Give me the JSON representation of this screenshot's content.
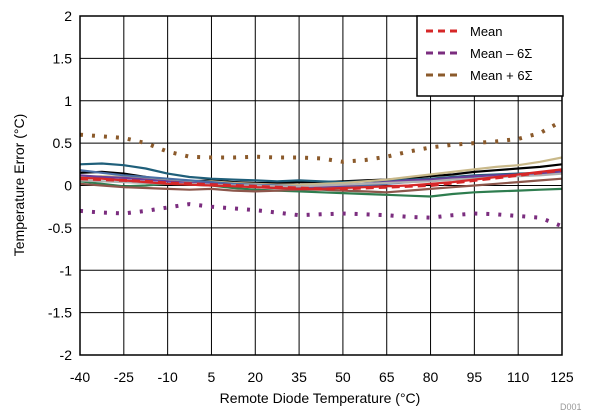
{
  "chart_data": {
    "type": "line",
    "title": "",
    "xlabel": "Remote Diode Temperature (°C)",
    "ylabel": "Temperature Error (°C)",
    "x": [
      -40,
      -32.5,
      -25,
      -17.5,
      -10,
      -2.5,
      5,
      12.5,
      20,
      27.5,
      35,
      42.5,
      50,
      57.5,
      65,
      72.5,
      80,
      87.5,
      95,
      102.5,
      110,
      117.5,
      125
    ],
    "xticks": [
      "-40",
      "-25",
      "-10",
      "5",
      "20",
      "35",
      "50",
      "65",
      "80",
      "95",
      "110",
      "125"
    ],
    "xlim": [
      -40,
      125
    ],
    "yticks": [
      "-2",
      "-1.5",
      "-1",
      "-0.5",
      "0",
      "0.5",
      "1",
      "1.5",
      "2"
    ],
    "ylim": [
      -2,
      2
    ],
    "grid": true,
    "legend_position": "top-right",
    "watermark": "D001",
    "series": [
      {
        "name": "Mean",
        "color": "#d62728",
        "style": "dashed",
        "values": [
          0.08,
          0.07,
          0.06,
          0.05,
          0.03,
          0.02,
          0.01,
          0.0,
          -0.01,
          -0.02,
          -0.03,
          -0.04,
          -0.04,
          -0.03,
          -0.02,
          -0.01,
          0.0,
          0.03,
          0.06,
          0.09,
          0.12,
          0.15,
          0.18
        ]
      },
      {
        "name": "Mean – 6Σ",
        "color": "#7b2d7f",
        "style": "dotted",
        "values": [
          -0.3,
          -0.32,
          -0.33,
          -0.3,
          -0.26,
          -0.22,
          -0.25,
          -0.27,
          -0.29,
          -0.32,
          -0.35,
          -0.34,
          -0.33,
          -0.34,
          -0.35,
          -0.37,
          -0.38,
          -0.35,
          -0.33,
          -0.34,
          -0.36,
          -0.38,
          -0.48
        ]
      },
      {
        "name": "Mean + 6Σ",
        "color": "#8b5a2b",
        "style": "dotted",
        "values": [
          0.6,
          0.58,
          0.56,
          0.5,
          0.4,
          0.34,
          0.33,
          0.33,
          0.34,
          0.33,
          0.33,
          0.32,
          0.28,
          0.3,
          0.34,
          0.4,
          0.45,
          0.48,
          0.5,
          0.52,
          0.55,
          0.62,
          0.76
        ]
      },
      {
        "name": "",
        "color": "#000000",
        "style": "solid",
        "values": [
          0.15,
          0.16,
          0.14,
          0.1,
          0.06,
          0.05,
          0.06,
          0.04,
          0.03,
          0.03,
          0.04,
          0.04,
          0.05,
          0.06,
          0.07,
          0.09,
          0.11,
          0.13,
          0.16,
          0.18,
          0.2,
          0.22,
          0.25
        ]
      },
      {
        "name": "",
        "color": "#1f5f7a",
        "style": "solid",
        "values": [
          0.25,
          0.26,
          0.24,
          0.2,
          0.14,
          0.1,
          0.08,
          0.07,
          0.06,
          0.05,
          0.06,
          0.05,
          0.04,
          0.05,
          0.06,
          0.07,
          0.08,
          0.1,
          0.12,
          0.13,
          0.14,
          0.15,
          0.17
        ]
      },
      {
        "name": "",
        "color": "#2e7d4f",
        "style": "solid",
        "values": [
          0.05,
          0.02,
          -0.01,
          0.0,
          0.02,
          0.01,
          0.0,
          -0.03,
          -0.05,
          -0.06,
          -0.07,
          -0.08,
          -0.09,
          -0.1,
          -0.11,
          -0.12,
          -0.13,
          -0.1,
          -0.08,
          -0.07,
          -0.06,
          -0.05,
          -0.04
        ]
      },
      {
        "name": "",
        "color": "#c9b98a",
        "style": "solid",
        "values": [
          0.1,
          0.11,
          0.1,
          0.08,
          0.06,
          0.04,
          0.05,
          0.03,
          0.02,
          0.01,
          0.01,
          0.02,
          0.03,
          0.05,
          0.07,
          0.1,
          0.13,
          0.16,
          0.19,
          0.22,
          0.24,
          0.28,
          0.33
        ]
      },
      {
        "name": "",
        "color": "#4a6fa5",
        "style": "solid",
        "values": [
          0.18,
          0.15,
          0.12,
          0.1,
          0.08,
          0.06,
          0.04,
          0.02,
          0.01,
          0.0,
          -0.01,
          -0.02,
          -0.01,
          0.0,
          0.02,
          0.04,
          0.06,
          0.08,
          0.1,
          0.11,
          0.12,
          0.13,
          0.15
        ]
      },
      {
        "name": "",
        "color": "#8c564b",
        "style": "solid",
        "values": [
          0.02,
          0.0,
          -0.02,
          -0.03,
          -0.04,
          -0.05,
          -0.04,
          -0.06,
          -0.07,
          -0.06,
          -0.05,
          -0.05,
          -0.06,
          -0.07,
          -0.08,
          -0.06,
          -0.04,
          -0.02,
          0.0,
          0.02,
          0.04,
          0.06,
          0.08
        ]
      },
      {
        "name": "",
        "color": "#6a3d9a",
        "style": "solid",
        "values": [
          0.12,
          0.1,
          0.09,
          0.07,
          0.05,
          0.03,
          0.02,
          0.0,
          -0.02,
          -0.03,
          -0.02,
          -0.01,
          0.0,
          0.02,
          0.04,
          0.06,
          0.07,
          0.09,
          0.11,
          0.12,
          0.13,
          0.14,
          0.16
        ]
      },
      {
        "name": "",
        "color": "#b0b0b0",
        "style": "solid",
        "values": [
          0.06,
          0.05,
          0.04,
          0.03,
          0.02,
          0.02,
          0.01,
          0.0,
          0.0,
          -0.01,
          -0.01,
          0.0,
          0.01,
          0.02,
          0.03,
          0.04,
          0.05,
          0.07,
          0.08,
          0.1,
          0.11,
          0.12,
          0.14
        ]
      },
      {
        "name": "",
        "color": "#d62728",
        "style": "solid",
        "values": [
          0.09,
          0.08,
          0.06,
          0.04,
          0.02,
          0.01,
          0.0,
          -0.01,
          -0.02,
          -0.03,
          -0.04,
          -0.04,
          -0.03,
          -0.02,
          -0.01,
          0.0,
          0.02,
          0.04,
          0.07,
          0.1,
          0.13,
          0.16,
          0.19
        ]
      }
    ]
  }
}
